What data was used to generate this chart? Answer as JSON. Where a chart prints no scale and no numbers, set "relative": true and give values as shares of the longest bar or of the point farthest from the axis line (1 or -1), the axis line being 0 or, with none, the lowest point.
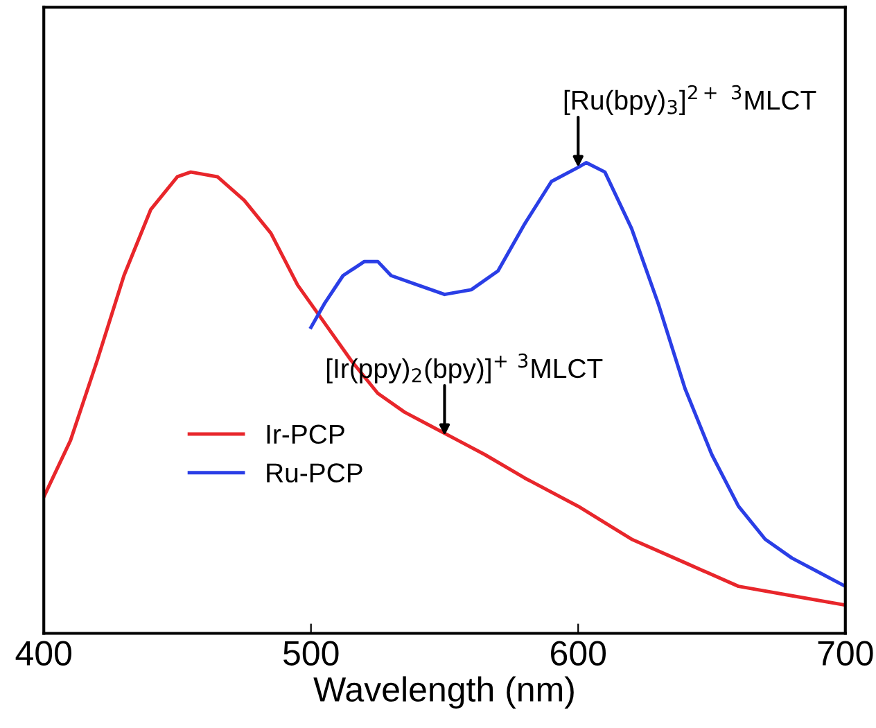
{
  "chart_data": {
    "type": "line",
    "relative": true,
    "xlabel": "Wavelength (nm)",
    "xlim": [
      400,
      700
    ],
    "xticks": [
      400,
      500,
      600,
      700
    ],
    "tick_labels": "x",
    "grid": false,
    "legend": "lower left",
    "series": [
      {
        "name": "Ir-PCP",
        "color": "#e8262b",
        "x": [
          400,
          410,
          420,
          430,
          440,
          450,
          455,
          465,
          475,
          485,
          495,
          505,
          515,
          525,
          535,
          545,
          555,
          565,
          580,
          600,
          620,
          640,
          660,
          680,
          700
        ],
        "values": [
          0.29,
          0.41,
          0.58,
          0.76,
          0.9,
          0.97,
          0.98,
          0.97,
          0.92,
          0.85,
          0.74,
          0.66,
          0.58,
          0.51,
          0.47,
          0.44,
          0.41,
          0.38,
          0.33,
          0.27,
          0.2,
          0.15,
          0.1,
          0.08,
          0.06
        ]
      },
      {
        "name": "Ru-PCP",
        "color": "#2a3ee6",
        "x": [
          500,
          505,
          512,
          520,
          525,
          530,
          540,
          550,
          560,
          570,
          580,
          590,
          600,
          603,
          610,
          620,
          630,
          640,
          650,
          660,
          670,
          680,
          690,
          700
        ],
        "values": [
          0.65,
          0.7,
          0.76,
          0.79,
          0.79,
          0.76,
          0.74,
          0.72,
          0.73,
          0.77,
          0.87,
          0.96,
          0.99,
          1.0,
          0.98,
          0.86,
          0.7,
          0.52,
          0.38,
          0.27,
          0.2,
          0.16,
          0.13,
          0.1
        ]
      }
    ],
    "annotations": [
      {
        "text": "[Ru(bpy)$_{3}$]$^{2+}$ $^{3}$MLCT",
        "x": 600,
        "y": 0.99
      },
      {
        "text": "[Ir(ppy)$_{2}$(bpy)]$^{+}$ $^{3}$MLCT",
        "x": 550,
        "y": 0.42
      }
    ]
  }
}
